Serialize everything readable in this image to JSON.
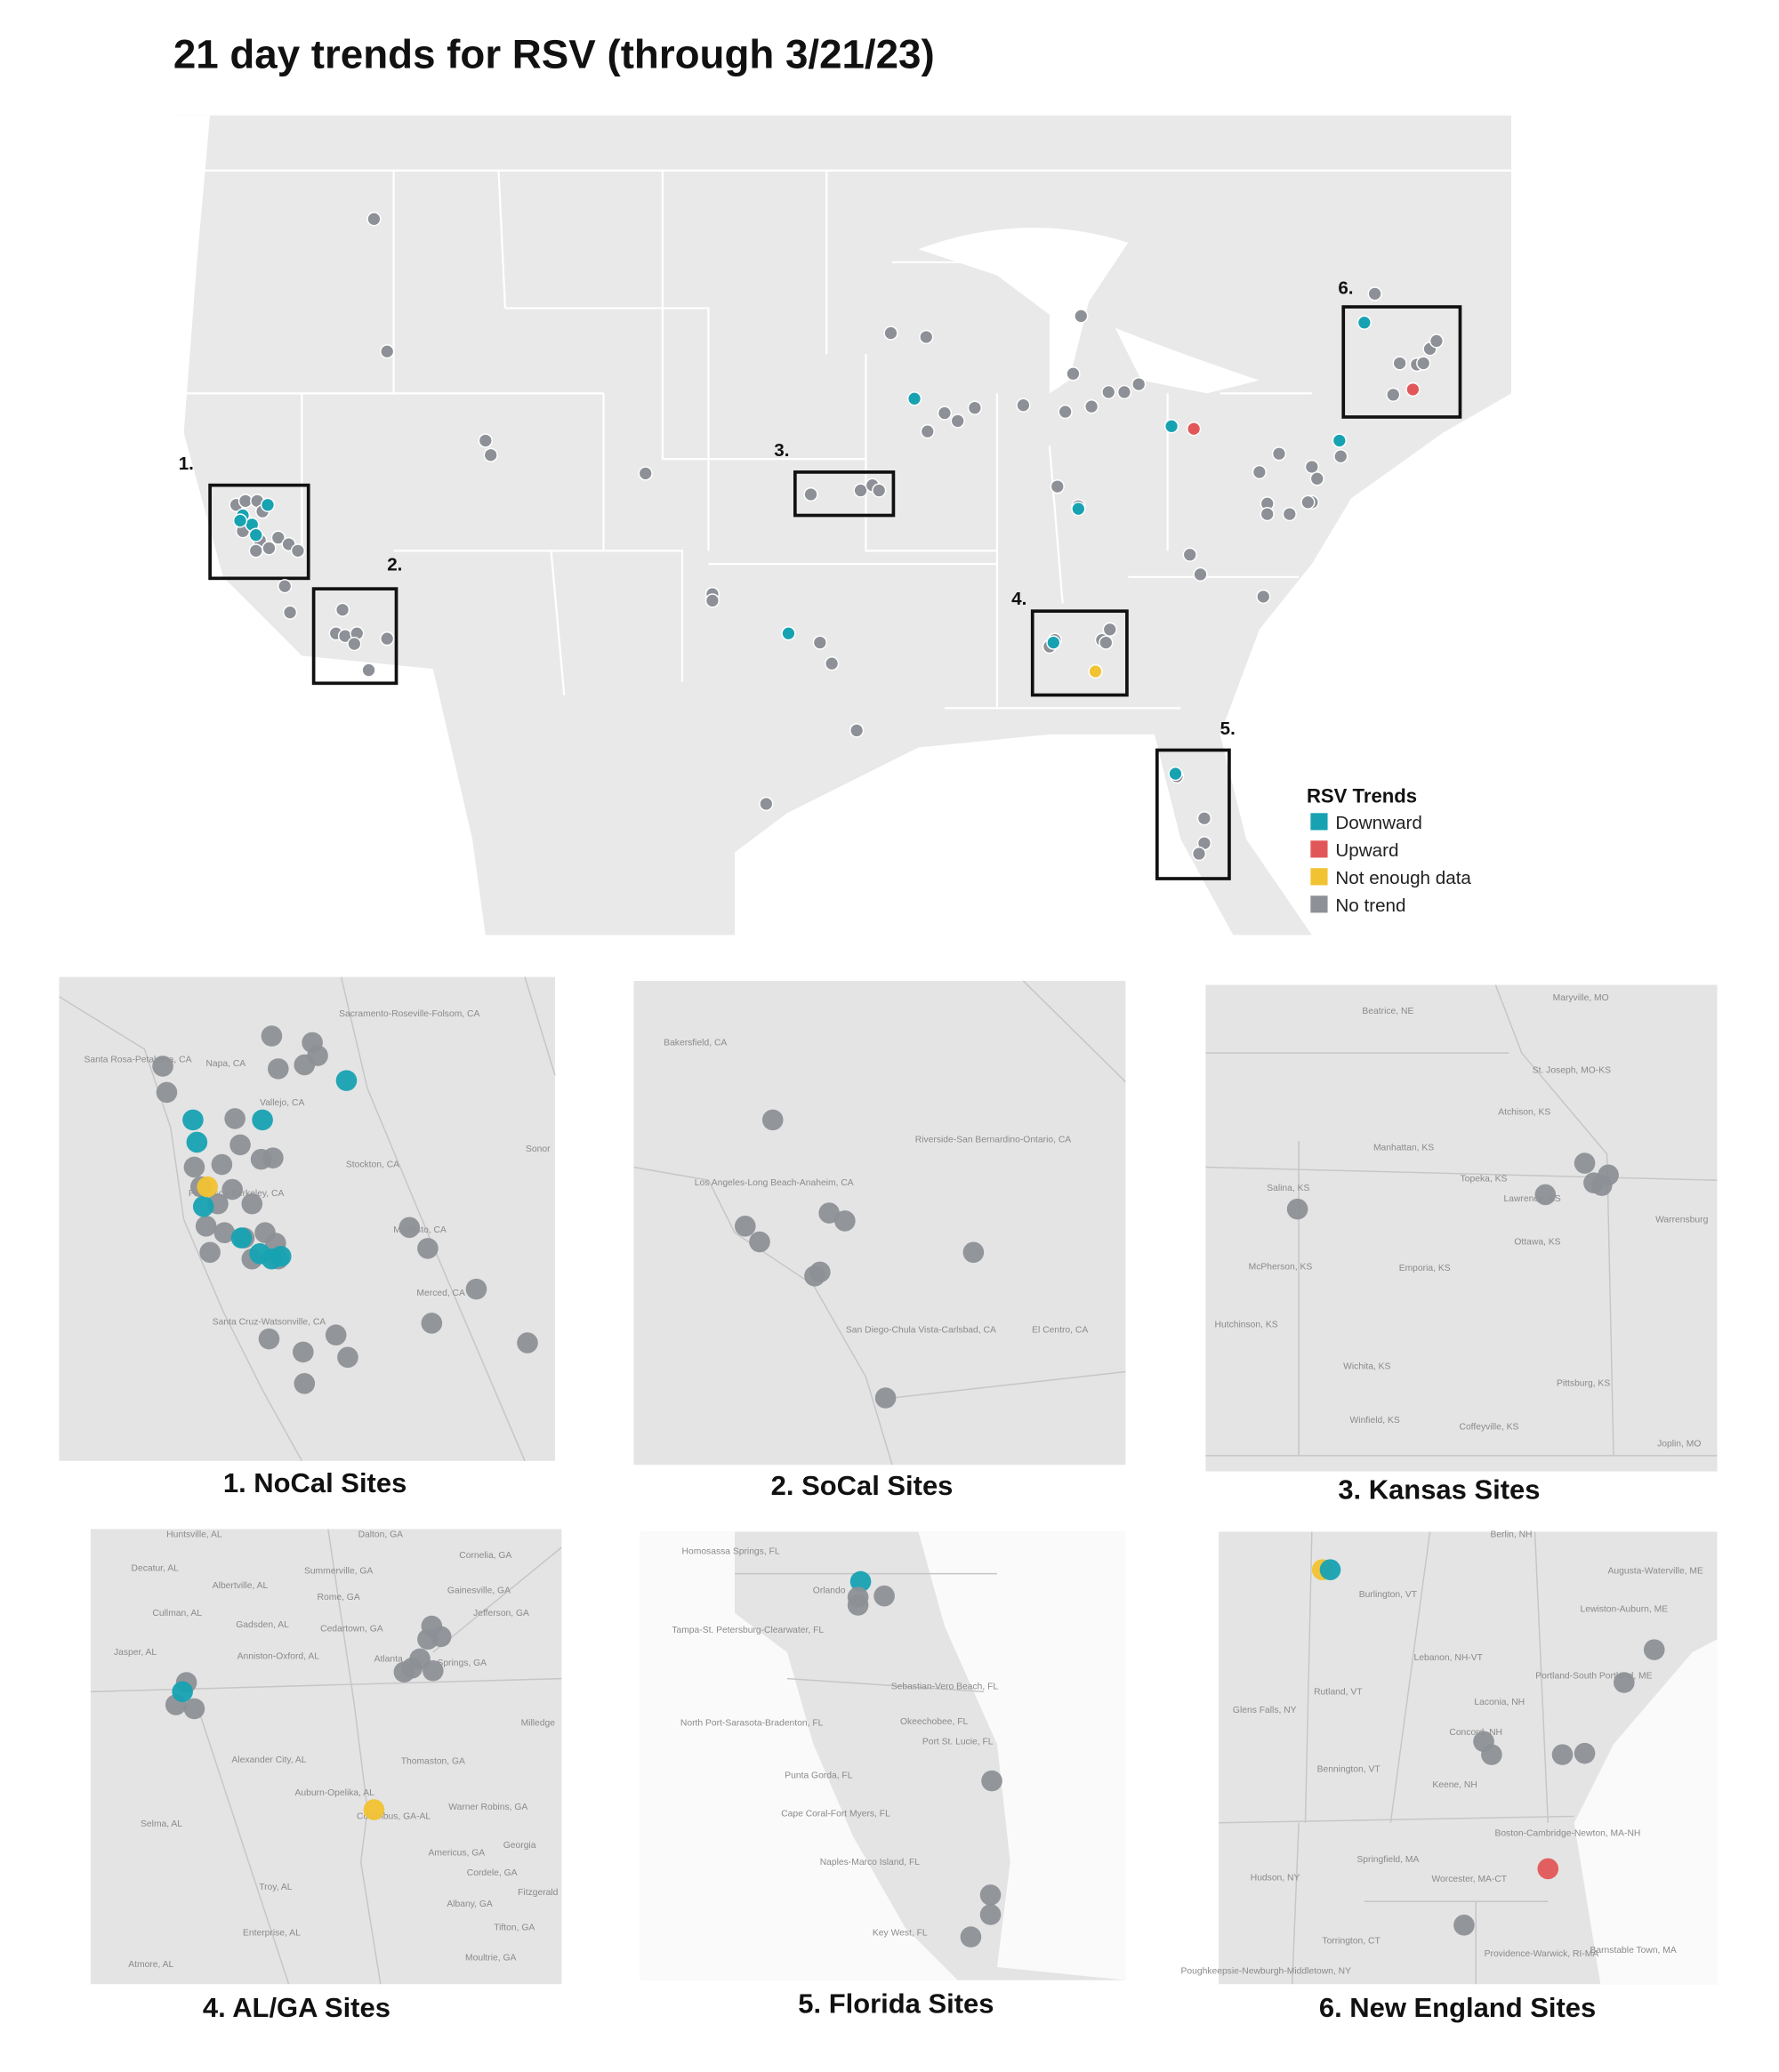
{
  "title": "21 day trends for RSV (through 3/21/23)",
  "legend": {
    "title": "RSV Trends",
    "items": [
      {
        "label": "Downward",
        "color": "#17a2b2"
      },
      {
        "label": "Upward",
        "color": "#e15759"
      },
      {
        "label": "Not enough data",
        "color": "#f1c232"
      },
      {
        "label": "No trend",
        "color": "#8d9096"
      }
    ]
  },
  "map": {
    "regions": [
      "1.",
      "2.",
      "3.",
      "4.",
      "5.",
      "6."
    ]
  },
  "panels": [
    {
      "caption": "1. NoCal Sites",
      "places": [
        "Sacramento-Roseville-Folsom, CA",
        "Santa Rosa-Petaluma, CA",
        "Napa, CA",
        "Vallejo, CA",
        "Stockton, CA",
        "Francisco-Berkeley, CA",
        "Modesto, CA",
        "Merced, CA",
        "Santa Cruz-Watsonville, CA",
        "Sonor"
      ]
    },
    {
      "caption": "2. SoCal Sites",
      "places": [
        "Bakersfield, CA",
        "Riverside-San Bernardino-Ontario, CA",
        "Los Angeles-Long Beach-Anaheim, CA",
        "San Diego-Chula Vista-Carlsbad, CA",
        "El Centro, CA"
      ]
    },
    {
      "caption": "3. Kansas Sites",
      "places": [
        "Beatrice, NE",
        "Maryville, MO",
        "St. Joseph, MO-KS",
        "Atchison, KS",
        "Manhattan, KS",
        "Salina, KS",
        "Topeka, KS",
        "Lawrence, KS",
        "Ottawa, KS",
        "McPherson, KS",
        "Emporia, KS",
        "Warrensburg",
        "Hutchinson, KS",
        "Wichita, KS",
        "Pittsburg, KS",
        "Winfield, KS",
        "Coffeyville, KS",
        "Joplin, MO"
      ]
    },
    {
      "caption": "4. AL/GA Sites",
      "places": [
        "Huntsville, AL",
        "Dalton, GA",
        "Decatur, AL",
        "Cornelia, GA",
        "Albertville, AL",
        "Summerville, GA",
        "Gainesville, GA",
        "Cullman, AL",
        "Rome, GA",
        "Gadsden, AL",
        "Cedartown, GA",
        "Jefferson, GA",
        "Jasper, AL",
        "Anniston-Oxford, AL",
        "Atlanta",
        "Springs, GA",
        "Milledge",
        "Alexander City, AL",
        "Thomaston, GA",
        "Auburn-Opelika, AL",
        "Columbus, GA-AL",
        "Warner Robins, GA",
        "Selma, AL",
        "Georgia",
        "Americus, GA",
        "Cordele, GA",
        "Fitzgerald",
        "Troy, AL",
        "Albany, GA",
        "Tifton, GA",
        "Enterprise, AL",
        "Atmore, AL",
        "Moultrie, GA"
      ]
    },
    {
      "caption": "5. Florida Sites",
      "places": [
        "Homosassa Springs, FL",
        "Orlando",
        "Tampa-St. Petersburg-Clearwater, FL",
        "Sebastian-Vero Beach, FL",
        "North Port-Sarasota-Bradenton, FL",
        "Okeechobee, FL",
        "Port St. Lucie, FL",
        "Punta Gorda, FL",
        "Cape Coral-Fort Myers, FL",
        "Naples-Marco Island, FL",
        "Key West, FL"
      ]
    },
    {
      "caption": "6. New England Sites",
      "places": [
        "Berlin, NH",
        "Augusta-Waterville, ME",
        "Lewiston-Auburn, ME",
        "Burlington, VT",
        "Lebanon, NH-VT",
        "Portland-South Portland, ME",
        "Rutland, VT",
        "Glens Falls, NY",
        "Laconia, NH",
        "Concord, NH",
        "Bennington, VT",
        "Keene, NH",
        "Boston-Cambridge-Newton, MA-NH",
        "Springfield, MA",
        "Hudson, NY",
        "Worcester, MA-CT",
        "Torrington, CT",
        "Providence-Warwick, RI-MA",
        "Barnstable Town, MA",
        "Poughkeepsie-Newburgh-Middletown, NY"
      ]
    }
  ]
}
